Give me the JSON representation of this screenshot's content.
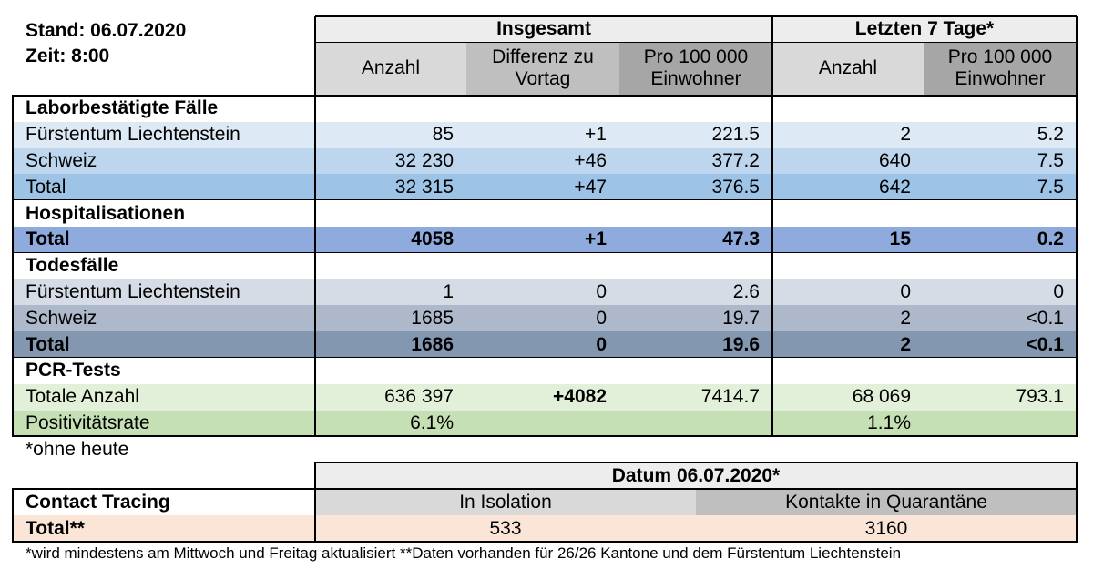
{
  "header": {
    "stand": "Stand: 06.07.2020",
    "zeit": "Zeit: 8:00"
  },
  "columns": {
    "group1": "Insgesamt",
    "group2": "Letzten 7 Tage*",
    "cols": [
      "Anzahl",
      "Differenz zu Vortag",
      "Pro 100 000 Einwohner",
      "Anzahl",
      "Pro 100 000 Einwohner"
    ]
  },
  "sections": [
    {
      "title": "Laborbestätigte Fälle",
      "rows": [
        {
          "label": "Fürstentum Liechtenstein",
          "cells": [
            "85",
            "+1",
            "221.5",
            "2",
            "5.2"
          ]
        },
        {
          "label": "Schweiz",
          "cells": [
            "32 230",
            "+46",
            "377.2",
            "640",
            "7.5"
          ]
        },
        {
          "label": "Total",
          "cells": [
            "32 315",
            "+47",
            "376.5",
            "642",
            "7.5"
          ]
        }
      ]
    },
    {
      "title": "Hospitalisationen",
      "rows": [
        {
          "label": "Total",
          "cells": [
            "4058",
            "+1",
            "47.3",
            "15",
            "0.2"
          ]
        }
      ]
    },
    {
      "title": "Todesfälle",
      "rows": [
        {
          "label": "Fürstentum Liechtenstein",
          "cells": [
            "1",
            "0",
            "2.6",
            "0",
            "0"
          ]
        },
        {
          "label": "Schweiz",
          "cells": [
            "1685",
            "0",
            "19.7",
            "2",
            "<0.1"
          ]
        },
        {
          "label": "Total",
          "cells": [
            "1686",
            "0",
            "19.6",
            "2",
            "<0.1"
          ]
        }
      ]
    },
    {
      "title": "PCR-Tests",
      "rows": [
        {
          "label": "Totale Anzahl",
          "cells": [
            "636 397",
            "+4082",
            "7414.7",
            "68 069",
            "793.1"
          ]
        },
        {
          "label": "Positivitätsrate",
          "cells": [
            "6.1%",
            null,
            null,
            "1.1%",
            null
          ]
        }
      ]
    }
  ],
  "note": "*ohne heute",
  "contact": {
    "date": "Datum 06.07.2020*",
    "title": "Contact Tracing",
    "cols": [
      "In Isolation",
      "Kontakte in Quarantäne"
    ],
    "row": {
      "label": "Total**",
      "cells": [
        "533",
        "3160"
      ]
    }
  },
  "footnote": "*wird mindestens am Mittwoch und Freitag aktualisiert   **Daten vorhanden für 26/26 Kantone und dem Fürstentum Liechtenstein"
}
